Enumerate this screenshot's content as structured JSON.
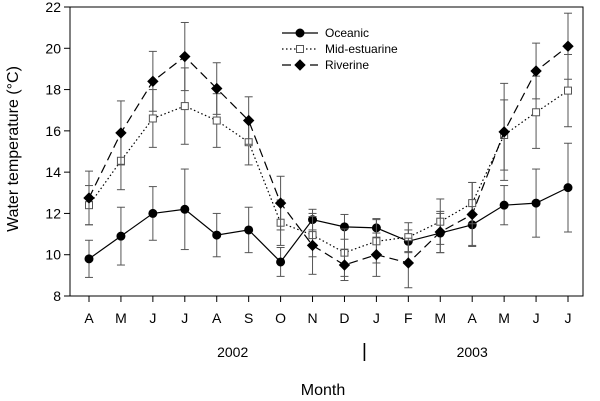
{
  "chart_data": {
    "type": "line",
    "xlabel": "Month",
    "ylabel": "Water temperature (°C)",
    "ylim": [
      8,
      22
    ],
    "yticks": [
      8,
      10,
      12,
      14,
      16,
      18,
      20,
      22
    ],
    "categories": [
      "A",
      "M",
      "J",
      "J",
      "A",
      "S",
      "O",
      "N",
      "D",
      "J",
      "F",
      "M",
      "A",
      "M",
      "J",
      "J"
    ],
    "year_labels": [
      {
        "label": "2002",
        "center_index": 4.5
      },
      {
        "label": "2003",
        "center_index": 12.0
      }
    ],
    "year_divider_index": 8.5,
    "legend_position": "top-center",
    "series": [
      {
        "name": "Oceanic",
        "marker": "circle-filled",
        "line": "solid",
        "values": [
          9.8,
          10.9,
          12.0,
          12.2,
          10.95,
          11.2,
          9.65,
          11.7,
          11.35,
          11.3,
          10.65,
          11.05,
          11.45,
          12.4,
          12.5,
          13.25
        ],
        "errors": [
          0.9,
          1.4,
          1.3,
          1.95,
          1.05,
          1.1,
          0.7,
          0.5,
          0.6,
          0.45,
          0.55,
          0.95,
          1.0,
          0.95,
          1.65,
          2.15
        ]
      },
      {
        "name": "Mid-estuarine",
        "marker": "square-open",
        "line": "dotted",
        "values": [
          12.4,
          14.55,
          16.6,
          17.2,
          16.5,
          15.45,
          11.55,
          10.95,
          10.1,
          10.65,
          10.85,
          11.6,
          12.5,
          15.8,
          16.9,
          17.95
        ],
        "errors": [
          0.95,
          1.4,
          1.4,
          1.85,
          1.3,
          1.1,
          1.1,
          1.05,
          1.15,
          1.05,
          0.7,
          1.1,
          1.0,
          1.7,
          1.75,
          1.75
        ]
      },
      {
        "name": "Riverine",
        "marker": "diamond-filled",
        "line": "dashed",
        "values": [
          12.75,
          15.9,
          18.4,
          19.6,
          18.05,
          16.5,
          12.5,
          10.45,
          9.5,
          10.0,
          9.6,
          11.1,
          11.95,
          15.95,
          18.9,
          20.1
        ],
        "errors": [
          1.3,
          1.55,
          1.45,
          1.65,
          1.25,
          1.15,
          1.3,
          1.4,
          0.75,
          1.05,
          1.2,
          1.0,
          1.55,
          2.35,
          1.35,
          1.6
        ]
      }
    ]
  }
}
